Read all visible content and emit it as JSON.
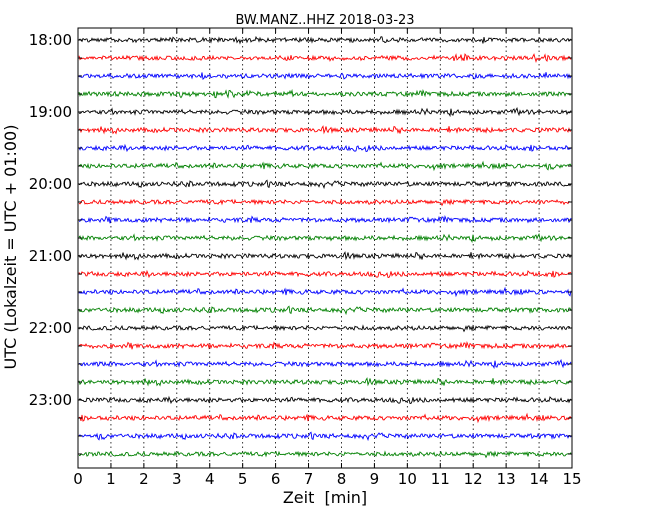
{
  "chart_data": {
    "type": "line",
    "title": "BW.MANZ..HHZ 2018-03-23",
    "xlabel": "Zeit  [min]",
    "ylabel": "UTC (Lokalzeit = UTC + 01:00)",
    "xlim": [
      0,
      15
    ],
    "x_ticks": [
      "0",
      "1",
      "2",
      "3",
      "4",
      "5",
      "6",
      "7",
      "8",
      "9",
      "10",
      "11",
      "12",
      "13",
      "14",
      "15"
    ],
    "y_tick_labels": [
      "18:00",
      "19:00",
      "20:00",
      "21:00",
      "22:00",
      "23:00"
    ],
    "grid": "vertical-dotted",
    "traces": {
      "count": 24,
      "interval_minutes": 15,
      "start": "18:00",
      "colors": [
        "#000000",
        "#ff0000",
        "#0000ff",
        "#008000"
      ]
    }
  }
}
